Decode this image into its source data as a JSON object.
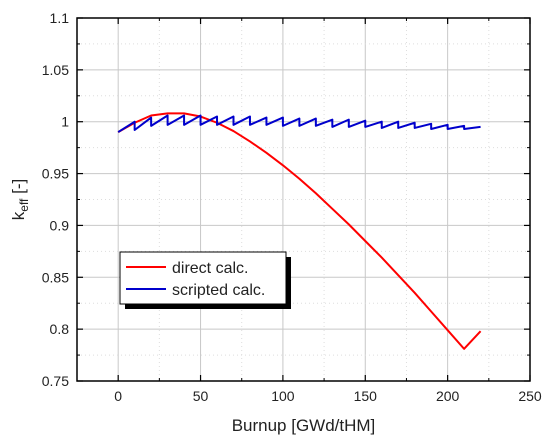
{
  "chart_data": {
    "type": "line",
    "title": "",
    "xlabel": "Burnup [GWd/tHM]",
    "ylabel": {
      "main": "k",
      "sub": "eff",
      "suffix": " [-]"
    },
    "xlim": [
      -25,
      250
    ],
    "ylim": [
      0.75,
      1.1
    ],
    "xticks": [
      0,
      50,
      100,
      150,
      200,
      250
    ],
    "yticks": [
      0.75,
      0.8,
      0.85,
      0.9,
      0.95,
      1,
      1.05,
      1.1
    ],
    "xtick_labels": [
      "0",
      "50",
      "100",
      "150",
      "200",
      "250"
    ],
    "ytick_labels": [
      "0.75",
      "0.8",
      "0.85",
      "0.9",
      "0.95",
      "1",
      "1.05",
      "1.1"
    ],
    "grid": true,
    "legend": {
      "placement": "lower-left"
    },
    "series": [
      {
        "name": "direct calc.",
        "color": "#ff0000",
        "x": [
          0,
          10,
          20,
          30,
          40,
          50,
          60,
          70,
          80,
          90,
          100,
          110,
          120,
          130,
          140,
          150,
          160,
          170,
          180,
          190,
          200,
          210,
          220
        ],
        "y": [
          0.99,
          0.999,
          1.006,
          1.008,
          1.008,
          1.005,
          0.999,
          0.991,
          0.981,
          0.97,
          0.958,
          0.945,
          0.931,
          0.916,
          0.901,
          0.885,
          0.869,
          0.852,
          0.835,
          0.817,
          0.799,
          0.781,
          0.798
        ]
      },
      {
        "name": "scripted calc.",
        "color": "#0000cc",
        "x": [
          0,
          10,
          10,
          20,
          20,
          30,
          30,
          40,
          40,
          50,
          50,
          60,
          60,
          70,
          70,
          80,
          80,
          90,
          90,
          100,
          100,
          110,
          110,
          120,
          120,
          130,
          130,
          140,
          140,
          150,
          150,
          160,
          160,
          170,
          170,
          180,
          180,
          190,
          190,
          200,
          200,
          210,
          210,
          220
        ],
        "y": [
          0.99,
          1.0,
          0.992,
          1.004,
          0.996,
          1.006,
          0.997,
          1.006,
          0.997,
          1.006,
          0.997,
          1.005,
          0.997,
          1.005,
          0.997,
          1.005,
          0.997,
          1.004,
          0.997,
          1.004,
          0.996,
          1.003,
          0.996,
          1.003,
          0.996,
          1.002,
          0.995,
          1.002,
          0.995,
          1.001,
          0.995,
          1.0,
          0.994,
          1.0,
          0.994,
          0.999,
          0.994,
          0.998,
          0.993,
          0.997,
          0.993,
          0.996,
          0.993,
          0.995
        ]
      }
    ]
  }
}
